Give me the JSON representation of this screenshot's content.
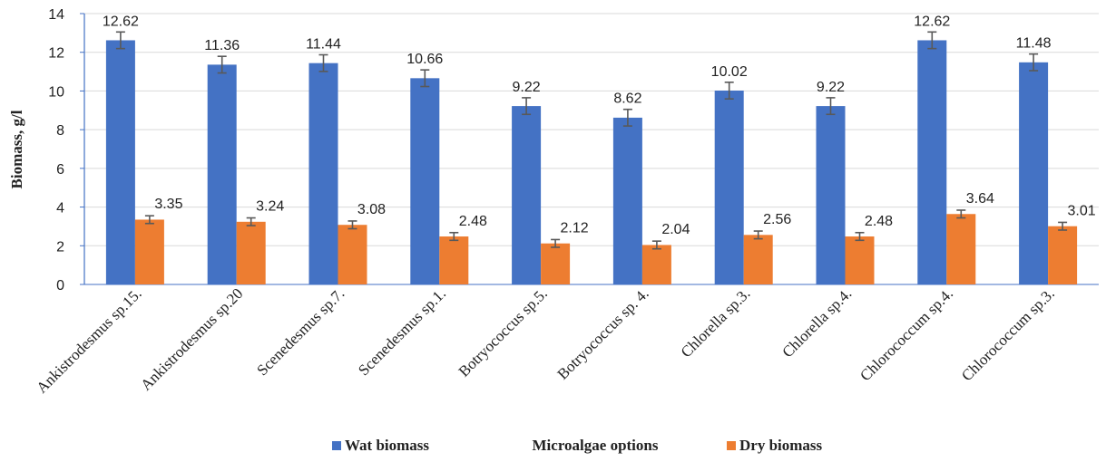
{
  "chart_data": {
    "type": "bar",
    "xlabel": "Microalgae options",
    "ylabel": "Biomass, g/l",
    "ylim": [
      0,
      14
    ],
    "yticks": [
      0,
      2,
      4,
      6,
      8,
      10,
      12,
      14
    ],
    "grid": "horizontal",
    "legend_position": "bottom",
    "categories": [
      "Ankistrodesmus sp.15.",
      "Ankistrodesmus sp.20",
      "Scenedesmus sp.7.",
      "Scenedesmus sp.1.",
      "Botryococcus sp.5.",
      "Botryococcus sp. 4.",
      "Chlorella sp.3.",
      "Chlorella sp.4.",
      "Chlorococcum sp.4.",
      "Chlorococcum sp.3."
    ],
    "series": [
      {
        "name": "Wat biomass",
        "color": "#4472C4",
        "values": [
          12.62,
          11.36,
          11.44,
          10.66,
          9.22,
          8.62,
          10.02,
          9.22,
          12.62,
          11.48
        ],
        "labels": [
          "12.62",
          "11.36",
          "11.44",
          "10.66",
          "9.22",
          "8.62",
          "10.02",
          "9.22",
          "12.62",
          "11.48"
        ],
        "error": [
          0.43,
          0.43,
          0.43,
          0.43,
          0.43,
          0.43,
          0.43,
          0.43,
          0.43,
          0.43
        ]
      },
      {
        "name": "Dry biomass",
        "color": "#ED7D31",
        "values": [
          3.35,
          3.24,
          3.08,
          2.48,
          2.12,
          2.04,
          2.56,
          2.48,
          3.64,
          3.01
        ],
        "labels": [
          "3.35",
          "3.24",
          "3.08",
          "2.48",
          "2.12",
          "2.04",
          "2.56",
          "2.48",
          "3.64",
          "3.01"
        ],
        "error": [
          0.2,
          0.2,
          0.2,
          0.2,
          0.2,
          0.2,
          0.2,
          0.2,
          0.2,
          0.2
        ]
      }
    ]
  }
}
